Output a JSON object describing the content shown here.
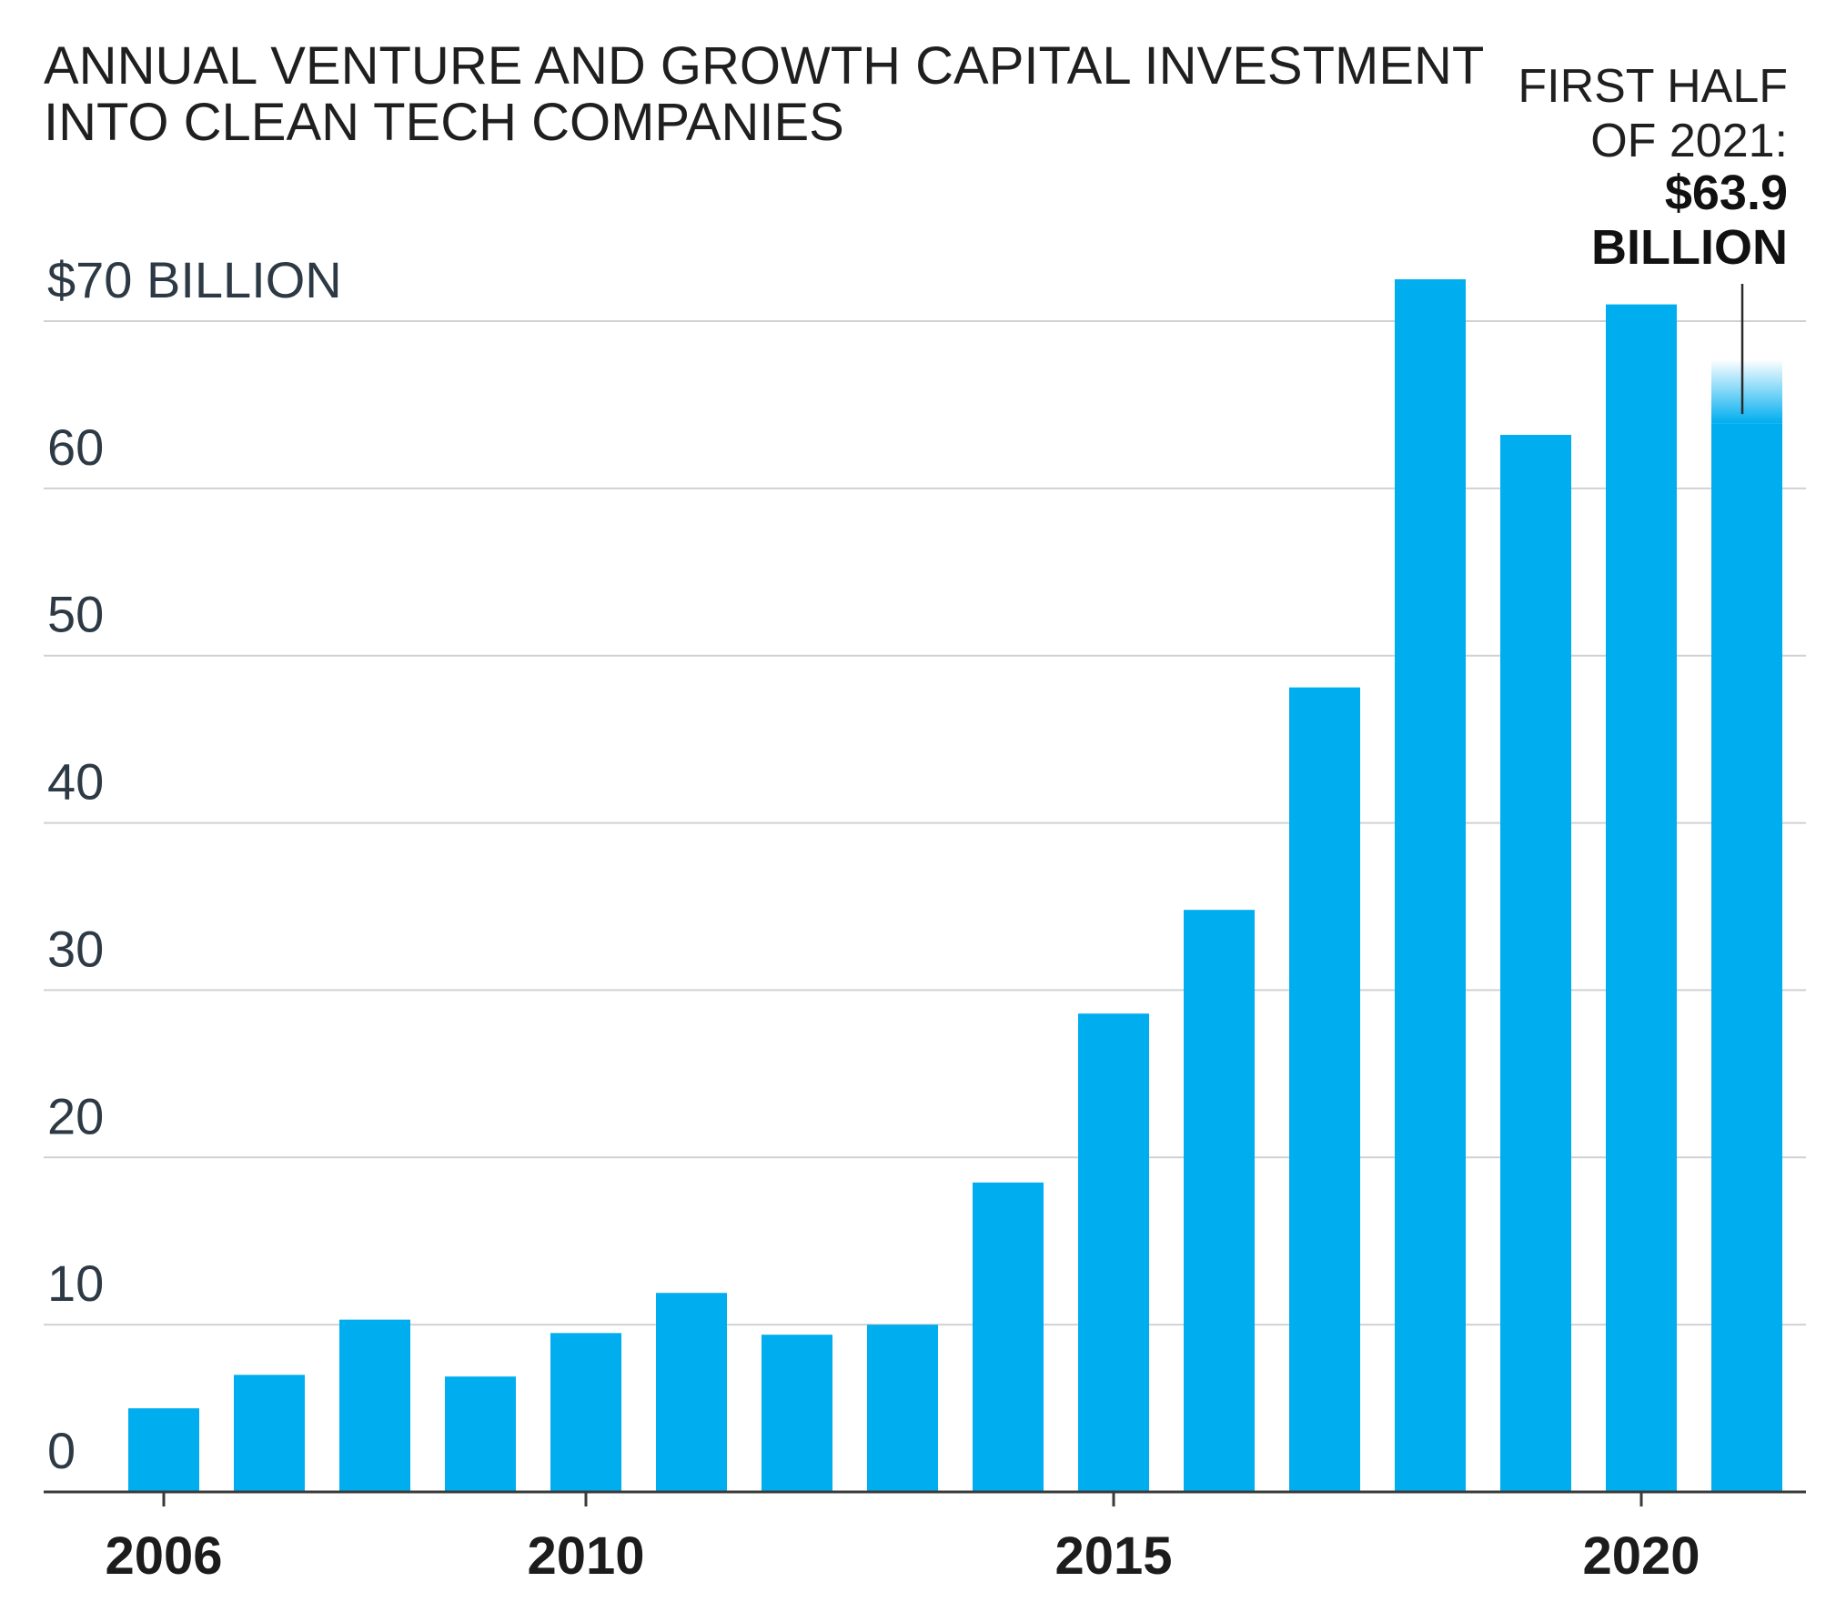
{
  "chart_data": {
    "type": "bar",
    "title_lines": [
      "ANNUAL VENTURE AND GROWTH CAPITAL INVESTMENT",
      "INTO CLEAN TECH COMPANIES"
    ],
    "ylabel": "",
    "xlabel": "",
    "ylim": [
      0,
      70
    ],
    "y_ticks": [
      {
        "value": 70,
        "label": "$70 BILLION"
      },
      {
        "value": 60,
        "label": "60"
      },
      {
        "value": 50,
        "label": "50"
      },
      {
        "value": 40,
        "label": "40"
      },
      {
        "value": 30,
        "label": "30"
      },
      {
        "value": 20,
        "label": "20"
      },
      {
        "value": 10,
        "label": "10"
      },
      {
        "value": 0,
        "label": "0"
      }
    ],
    "x_tick_labels": [
      {
        "year": 2006,
        "label": "2006"
      },
      {
        "year": 2010,
        "label": "2010"
      },
      {
        "year": 2015,
        "label": "2015"
      },
      {
        "year": 2020,
        "label": "2020"
      }
    ],
    "categories": [
      2006,
      2007,
      2008,
      2009,
      2010,
      2011,
      2012,
      2013,
      2014,
      2015,
      2016,
      2017,
      2018,
      2019,
      2020,
      2021
    ],
    "values": [
      5,
      7,
      10.3,
      6.9,
      9.5,
      11.9,
      9.4,
      10,
      18.5,
      28.6,
      34.8,
      48.1,
      72.5,
      63.2,
      71,
      63.9
    ],
    "bar_color": "#00aeef",
    "grid": true,
    "annotation": {
      "target_year": 2021,
      "lines": [
        "FIRST HALF",
        "OF 2021:"
      ],
      "value_lines": [
        "$63.9",
        "BILLION"
      ]
    }
  }
}
